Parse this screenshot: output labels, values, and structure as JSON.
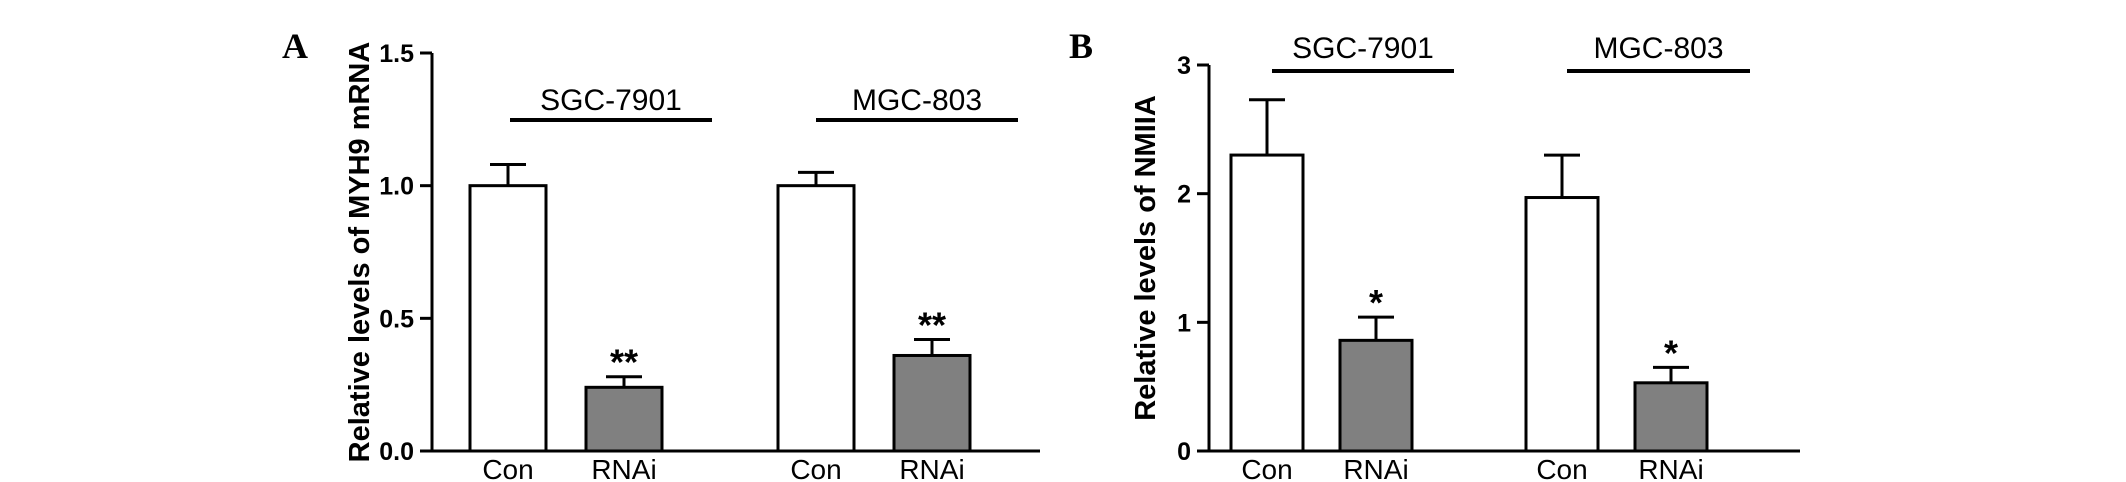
{
  "chart_data": [
    {
      "type": "bar",
      "panel": "A",
      "ylabel": "Relative levels of MYH9 mRNA",
      "ylim": [
        0,
        1.5
      ],
      "yticks": [
        "0.0",
        "0.5",
        "1.0",
        "1.5"
      ],
      "groups": [
        {
          "name": "SGC-7901",
          "bars": [
            {
              "label": "Con",
              "value": 1.0,
              "error": 0.08,
              "sig": ""
            },
            {
              "label": "RNAi",
              "value": 0.24,
              "error": 0.04,
              "sig": "**"
            }
          ]
        },
        {
          "name": "MGC-803",
          "bars": [
            {
              "label": "Con",
              "value": 1.0,
              "error": 0.05,
              "sig": ""
            },
            {
              "label": "RNAi",
              "value": 0.36,
              "error": 0.06,
              "sig": "**"
            }
          ]
        }
      ]
    },
    {
      "type": "bar",
      "panel": "B",
      "ylabel": "Relative levels of NMIIA",
      "ylim": [
        0,
        3
      ],
      "yticks": [
        "0",
        "1",
        "2",
        "3"
      ],
      "groups": [
        {
          "name": "SGC-7901",
          "bars": [
            {
              "label": "Con",
              "value": 2.3,
              "error": 0.43,
              "sig": ""
            },
            {
              "label": "RNAi",
              "value": 0.86,
              "error": 0.18,
              "sig": "*"
            }
          ]
        },
        {
          "name": "MGC-803",
          "bars": [
            {
              "label": "Con",
              "value": 1.97,
              "error": 0.33,
              "sig": ""
            },
            {
              "label": "RNAi",
              "value": 0.53,
              "error": 0.12,
              "sig": "*"
            }
          ]
        }
      ]
    }
  ],
  "colors": {
    "con": "#ffffff",
    "rnai": "#808080",
    "stroke": "#000000"
  }
}
